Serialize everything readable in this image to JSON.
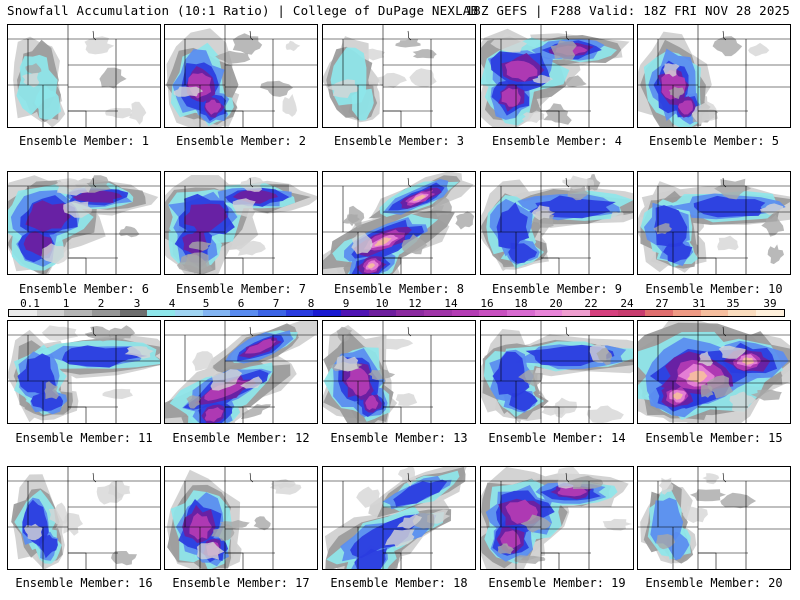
{
  "header": {
    "left_title": "Snowfall Accumulation (10:1 Ratio) | College of DuPage NEXLAB",
    "right_title": "18Z GEFS | F288 Valid: 18Z FRI NOV 28 2025"
  },
  "panels": [
    {
      "label": "Ensemble Member: 1",
      "intensity": 0.35,
      "pattern": "west-small"
    },
    {
      "label": "Ensemble Member: 2",
      "intensity": 0.75,
      "pattern": "west-heavy"
    },
    {
      "label": "Ensemble Member: 3",
      "intensity": 0.35,
      "pattern": "west-small"
    },
    {
      "label": "Ensemble Member: 4",
      "intensity": 0.8,
      "pattern": "northwest-band"
    },
    {
      "label": "Ensemble Member: 5",
      "intensity": 0.75,
      "pattern": "west-heavy"
    },
    {
      "label": "Ensemble Member: 6",
      "intensity": 0.7,
      "pattern": "northwest-band"
    },
    {
      "label": "Ensemble Member: 7",
      "intensity": 0.7,
      "pattern": "northwest-band"
    },
    {
      "label": "Ensemble Member: 8",
      "intensity": 0.95,
      "pattern": "diagonal-band"
    },
    {
      "label": "Ensemble Member: 9",
      "intensity": 0.55,
      "pattern": "wide-north"
    },
    {
      "label": "Ensemble Member: 10",
      "intensity": 0.6,
      "pattern": "wide-north"
    },
    {
      "label": "Ensemble Member: 11",
      "intensity": 0.6,
      "pattern": "wide-north"
    },
    {
      "label": "Ensemble Member: 12",
      "intensity": 0.75,
      "pattern": "diagonal-band"
    },
    {
      "label": "Ensemble Member: 13",
      "intensity": 0.75,
      "pattern": "west-heavy"
    },
    {
      "label": "Ensemble Member: 14",
      "intensity": 0.6,
      "pattern": "wide-north"
    },
    {
      "label": "Ensemble Member: 15",
      "intensity": 0.95,
      "pattern": "broad-heavy"
    },
    {
      "label": "Ensemble Member: 16",
      "intensity": 0.5,
      "pattern": "west-small"
    },
    {
      "label": "Ensemble Member: 17",
      "intensity": 0.8,
      "pattern": "west-heavy"
    },
    {
      "label": "Ensemble Member: 18",
      "intensity": 0.55,
      "pattern": "diagonal-band"
    },
    {
      "label": "Ensemble Member: 19",
      "intensity": 0.75,
      "pattern": "northwest-band"
    },
    {
      "label": "Ensemble Member: 20",
      "intensity": 0.4,
      "pattern": "west-small"
    }
  ],
  "color_scale": {
    "ticks": [
      "0.1",
      "1",
      "2",
      "3",
      "4",
      "5",
      "6",
      "7",
      "8",
      "9",
      "10",
      "12",
      "14",
      "16",
      "18",
      "20",
      "22",
      "24",
      "27",
      "31",
      "35",
      "39"
    ],
    "colors": [
      "#ebebeb",
      "#d0d0d0",
      "#b4b4b4",
      "#969696",
      "#6e6e6e",
      "#8ee6ea",
      "#9fd4f2",
      "#82b4f2",
      "#5a8cf0",
      "#3c64e6",
      "#2a3ce0",
      "#1a1ad2",
      "#5014b4",
      "#6e1e9e",
      "#8c2aa0",
      "#a034a8",
      "#b43cb4",
      "#c850c0",
      "#d86ad0",
      "#e884d8",
      "#ef9ecf",
      "#d6407e",
      "#c83c6e",
      "#e06e6e",
      "#ef9a84",
      "#f6be9e",
      "#fadcbe",
      "#fff0dc"
    ]
  }
}
